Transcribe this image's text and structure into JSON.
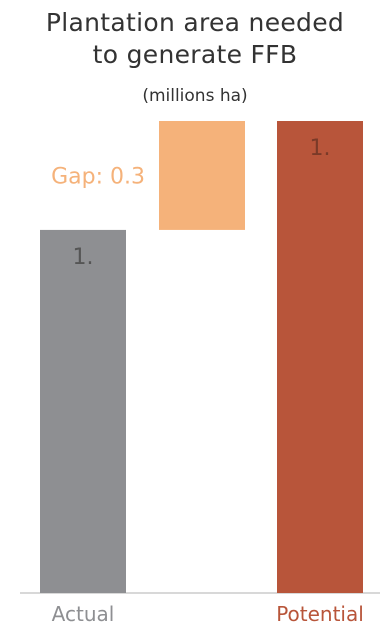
{
  "chart_data": {
    "type": "bar",
    "title_line1": "Plantation area needed",
    "title_line2": "to generate FFB",
    "subtitle": "(millions ha)",
    "categories": [
      "Actual",
      "Potential"
    ],
    "values": [
      1.0,
      1.3
    ],
    "value_labels": [
      "1.",
      "1."
    ],
    "gap": {
      "label": "Gap: 0.3",
      "value": 0.3,
      "color": "#f5b27a",
      "label_color": "#f5b27a"
    },
    "colors": [
      "#8e8f92",
      "#b8553a"
    ],
    "category_label_colors": [
      "#8e8f92",
      "#b8553a"
    ],
    "value_label_colors": [
      "#555555",
      "#7a3a28"
    ],
    "ylim": [
      0,
      1.3
    ],
    "grid": false,
    "legend": "none"
  }
}
